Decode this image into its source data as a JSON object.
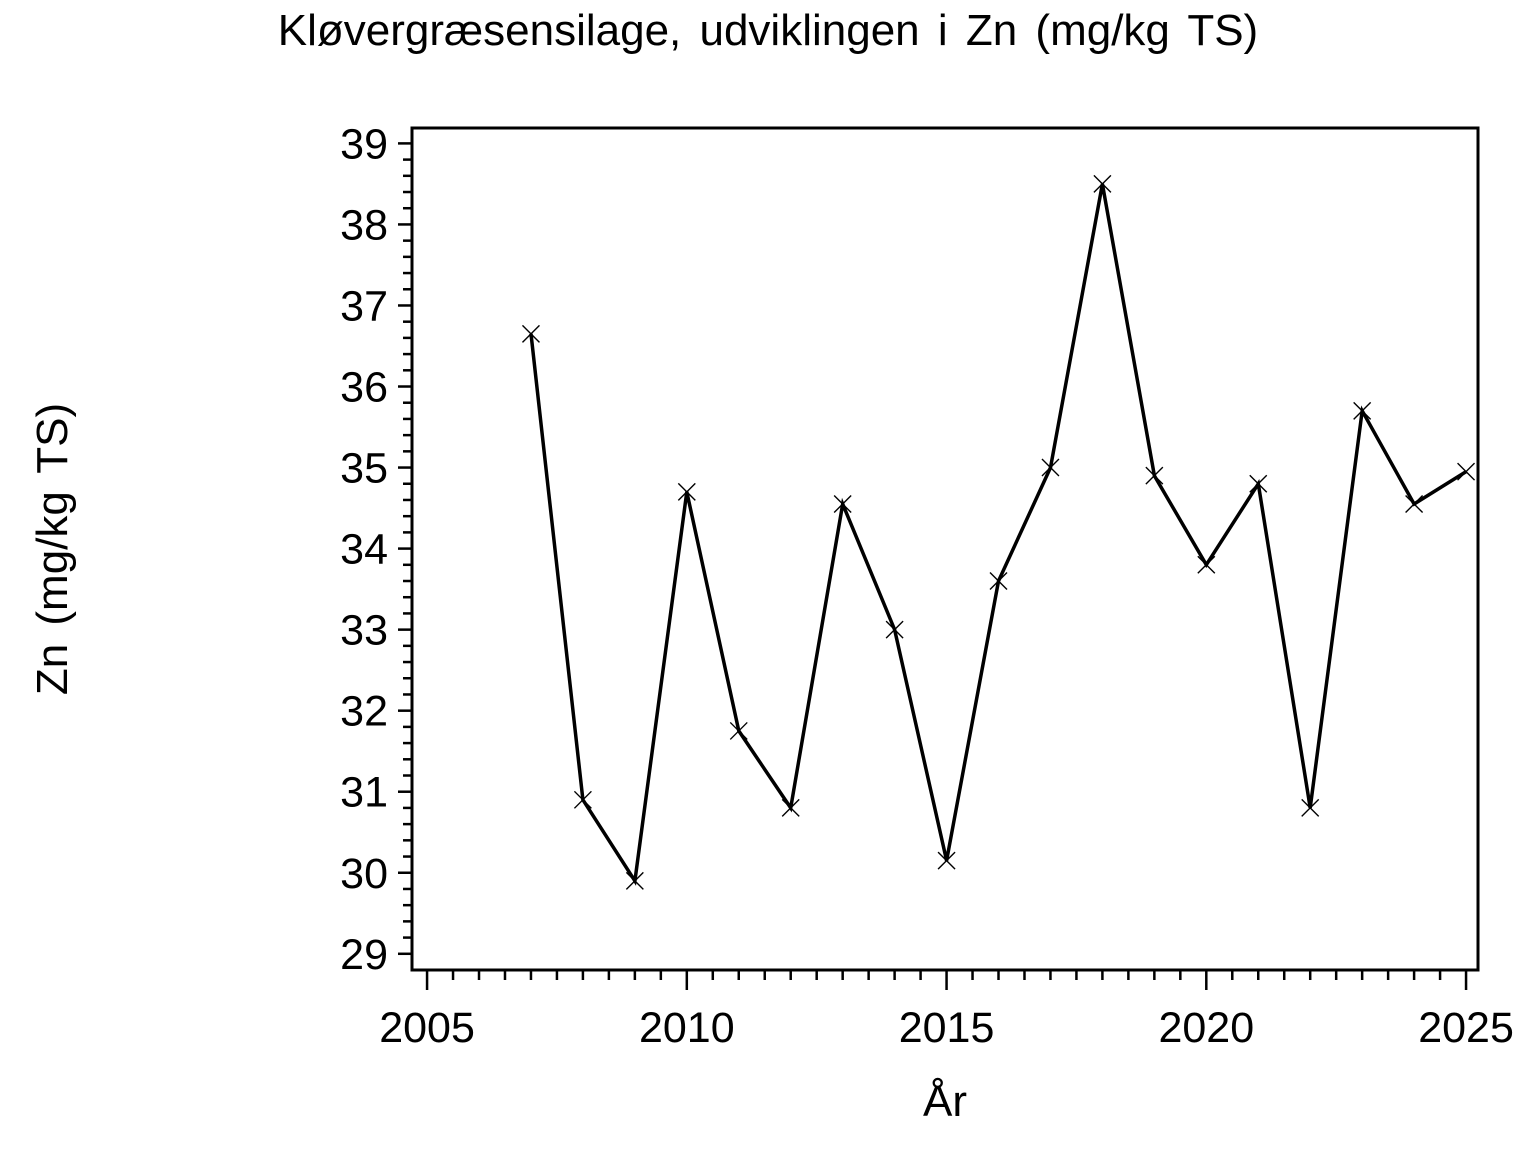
{
  "chart_data": {
    "type": "line",
    "title": "Kløvergræsensilage,  udviklingen  i  Zn  (mg/kg  TS)",
    "xlabel": "År",
    "ylabel": "Zn  (mg/kg  TS)",
    "x": [
      2007,
      2008,
      2009,
      2010,
      2011,
      2012,
      2013,
      2014,
      2015,
      2016,
      2017,
      2018,
      2019,
      2020,
      2021,
      2022,
      2023,
      2024,
      2025
    ],
    "values": [
      36.65,
      30.9,
      29.9,
      34.7,
      31.75,
      30.8,
      34.55,
      33.0,
      30.15,
      33.6,
      35.0,
      38.5,
      34.9,
      33.8,
      34.8,
      30.8,
      35.7,
      34.55,
      34.95
    ],
    "series_name": "Zn",
    "xlim": [
      2004.71,
      2025.23
    ],
    "ylim": [
      28.8,
      39.19
    ],
    "x_major_ticks": [
      2005,
      2010,
      2015,
      2020,
      2025
    ],
    "x_minor_step": 0.5,
    "y_major_ticks": [
      29,
      30,
      31,
      32,
      33,
      34,
      35,
      36,
      37,
      38,
      39
    ],
    "y_minor_step": 0.2,
    "marker": "x",
    "grid": false,
    "legend_position": "none",
    "line_color": "#000000",
    "text_color": "#000000",
    "background_color": "#ffffff"
  }
}
